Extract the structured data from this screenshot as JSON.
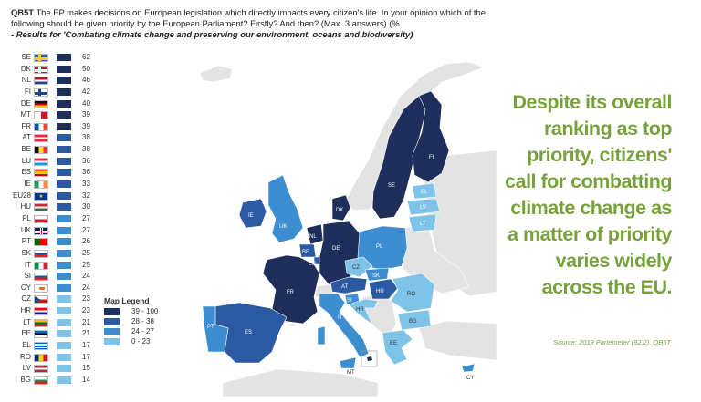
{
  "question": {
    "code": "QB5T",
    "text": "The EP makes decisions on European legislation which directly impacts every citizen's life. In your opinion which of the following should be given priority by the European Parliament? Firstly? And then? (Max. 3 answers) (%",
    "subtitle": "- Results for 'Combating climate change and preserving our environment, oceans and biodiversity)"
  },
  "colors": {
    "bin1": "#1f2f5c",
    "bin2": "#2b5aa3",
    "bin3": "#3c8ed0",
    "bin4": "#7ec3e8",
    "headline": "#77a13a"
  },
  "countries": [
    {
      "code": "SE",
      "value": "62",
      "bin": "bin1",
      "flag": "se"
    },
    {
      "code": "DK",
      "value": "50",
      "bin": "bin1",
      "flag": "dk"
    },
    {
      "code": "NL",
      "value": "46",
      "bin": "bin1",
      "flag": "nl"
    },
    {
      "code": "FI",
      "value": "42",
      "bin": "bin1",
      "flag": "fi"
    },
    {
      "code": "DE",
      "value": "40",
      "bin": "bin1",
      "flag": "de"
    },
    {
      "code": "MT",
      "value": "39",
      "bin": "bin1",
      "flag": "mt"
    },
    {
      "code": "FR",
      "value": "39",
      "bin": "bin1",
      "flag": "fr"
    },
    {
      "code": "AT",
      "value": "38",
      "bin": "bin2",
      "flag": "at"
    },
    {
      "code": "BE",
      "value": "38",
      "bin": "bin2",
      "flag": "be"
    },
    {
      "code": "LU",
      "value": "36",
      "bin": "bin2",
      "flag": "lu"
    },
    {
      "code": "ES",
      "value": "36",
      "bin": "bin2",
      "flag": "es"
    },
    {
      "code": "IE",
      "value": "33",
      "bin": "bin2",
      "flag": "ie"
    },
    {
      "code": "EU28",
      "value": "32",
      "bin": "bin2",
      "flag": "eu"
    },
    {
      "code": "HU",
      "value": "30",
      "bin": "bin2",
      "flag": "hu"
    },
    {
      "code": "PL",
      "value": "27",
      "bin": "bin3",
      "flag": "pl"
    },
    {
      "code": "UK",
      "value": "27",
      "bin": "bin3",
      "flag": "uk"
    },
    {
      "code": "PT",
      "value": "26",
      "bin": "bin3",
      "flag": "pt"
    },
    {
      "code": "SK",
      "value": "25",
      "bin": "bin3",
      "flag": "sk"
    },
    {
      "code": "IT",
      "value": "25",
      "bin": "bin3",
      "flag": "it"
    },
    {
      "code": "SI",
      "value": "24",
      "bin": "bin3",
      "flag": "si"
    },
    {
      "code": "CY",
      "value": "24",
      "bin": "bin3",
      "flag": "cy"
    },
    {
      "code": "CZ",
      "value": "23",
      "bin": "bin4",
      "flag": "cz"
    },
    {
      "code": "HR",
      "value": "23",
      "bin": "bin4",
      "flag": "hr"
    },
    {
      "code": "LT",
      "value": "21",
      "bin": "bin4",
      "flag": "lt"
    },
    {
      "code": "EE",
      "value": "21",
      "bin": "bin4",
      "flag": "ee"
    },
    {
      "code": "EL",
      "value": "17",
      "bin": "bin4",
      "flag": "el"
    },
    {
      "code": "RO",
      "value": "17",
      "bin": "bin4",
      "flag": "ro"
    },
    {
      "code": "LV",
      "value": "15",
      "bin": "bin4",
      "flag": "lv"
    },
    {
      "code": "BG",
      "value": "14",
      "bin": "bin4",
      "flag": "bg"
    }
  ],
  "legend": {
    "title": "Map Legend",
    "items": [
      {
        "label": "39 - 100",
        "bin": "bin1"
      },
      {
        "label": "28 - 38",
        "bin": "bin2"
      },
      {
        "label": "24 - 27",
        "bin": "bin3"
      },
      {
        "label": "0 - 23",
        "bin": "bin4"
      }
    ]
  },
  "headline": "Despite its overall ranking as top priority, citizens' call for combatting climate change as a matter of priority varies widely across the EU.",
  "source": "Source: 2019 Parlemeter (92.2), QB5T"
}
